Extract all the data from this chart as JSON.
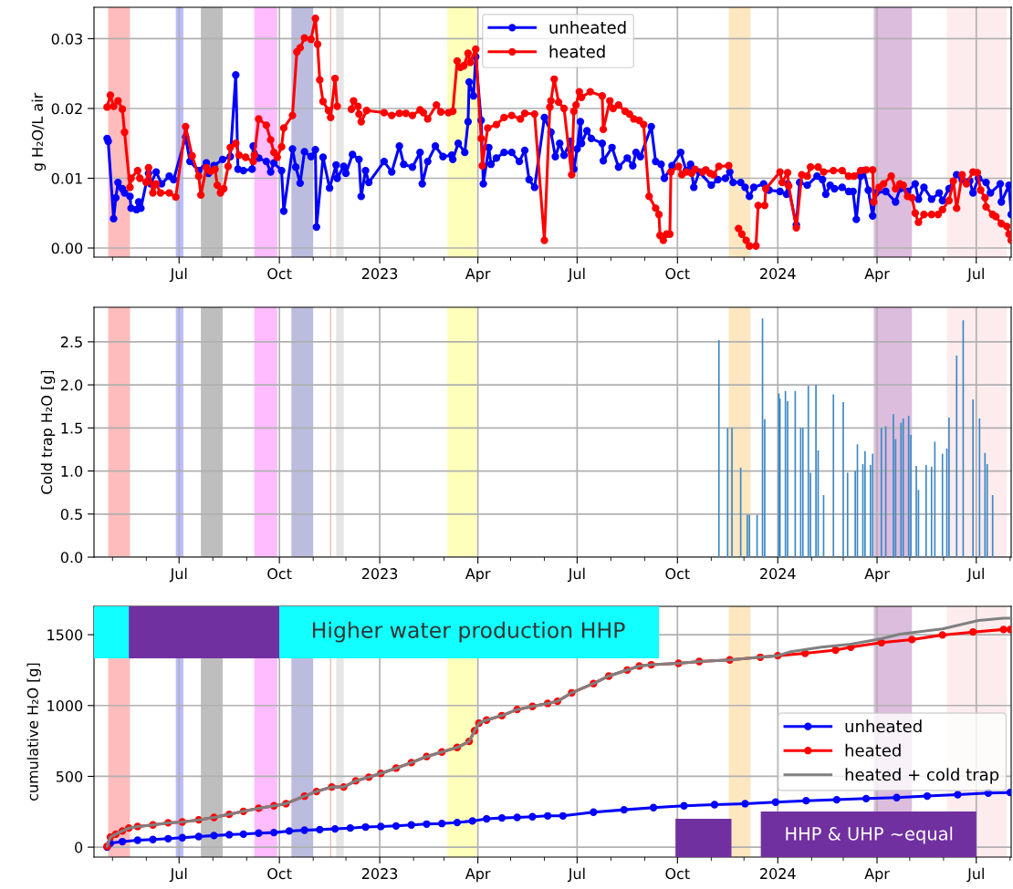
{
  "chart_data": [
    {
      "type": "line",
      "ylabel": "g H₂O/L air",
      "xlim": [
        "2022-04-14",
        "2024-08-02"
      ],
      "xticks": [
        {
          "value": "2022-07-01",
          "label": "Jul"
        },
        {
          "value": "2022-10-01",
          "label": "Oct"
        },
        {
          "value": "2023-01-01",
          "label": "2023"
        },
        {
          "value": "2023-04-01",
          "label": "Apr"
        },
        {
          "value": "2023-07-01",
          "label": "Jul"
        },
        {
          "value": "2023-10-01",
          "label": "Oct"
        },
        {
          "value": "2024-01-01",
          "label": "2024"
        },
        {
          "value": "2024-04-01",
          "label": "Apr"
        },
        {
          "value": "2024-07-01",
          "label": "Jul"
        }
      ],
      "ylim": [
        -0.0013,
        0.0345
      ],
      "yticks": [
        {
          "value": 0,
          "label": "0.00"
        },
        {
          "value": 0.01,
          "label": "0.01"
        },
        {
          "value": 0.02,
          "label": "0.02"
        },
        {
          "value": 0.03,
          "label": "0.03"
        }
      ],
      "grid": true,
      "legend": "top",
      "bands": [
        {
          "axis": "x",
          "from": "2022-04-27",
          "to": "2022-05-17",
          "color": "#ffbcbc"
        },
        {
          "axis": "x",
          "from": "2022-06-28",
          "to": "2022-07-05",
          "color": "#bcbcff"
        },
        {
          "axis": "x",
          "from": "2022-07-21",
          "to": "2022-08-10",
          "color": "#bebebe"
        },
        {
          "axis": "x",
          "from": "2022-09-08",
          "to": "2022-09-29",
          "color": "#ffbcff"
        },
        {
          "axis": "x",
          "from": "2022-10-12",
          "to": "2022-11-01",
          "color": "#bcbcde"
        },
        {
          "axis": "x",
          "from": "2022-11-22",
          "to": "2022-11-29",
          "color": "#e6e6e6"
        },
        {
          "axis": "x",
          "from": "2023-03-04",
          "to": "2023-03-31",
          "color": "#ffffbc"
        },
        {
          "axis": "x",
          "from": "2023-11-17",
          "to": "2023-12-07",
          "color": "#fde7c1"
        },
        {
          "axis": "x",
          "from": "2024-03-29",
          "to": "2024-05-03",
          "color": "#dcbddd"
        },
        {
          "axis": "x",
          "from": "2024-06-04",
          "to": "2024-07-29",
          "color": "#fdeced"
        }
      ],
      "ref_lines": [
        {
          "axis": "x",
          "value": "2022-11-17",
          "color": "#e8c0b4"
        }
      ],
      "series": [
        {
          "name": "unheated",
          "color": "#0000ff",
          "marker": "circle",
          "line_style": "solid",
          "x": [
            "2022-04-26",
            "2022-04-27",
            "2022-05-02",
            "2022-05-04",
            "2022-05-06",
            "2022-05-10",
            "2022-05-12",
            "2022-05-17",
            "2022-05-18",
            "2022-05-23",
            "2022-05-25",
            "2022-05-27",
            "2022-06-01",
            "2022-06-03",
            "2022-06-05",
            "2022-06-10",
            "2022-06-15",
            "2022-06-22",
            "2022-06-26",
            "2022-07-07",
            "2022-07-11",
            "2022-07-19",
            "2022-07-26",
            "2022-07-28",
            "2022-08-02",
            "2022-08-10",
            "2022-08-17",
            "2022-08-22",
            "2022-08-24",
            "2022-08-29",
            "2022-09-06",
            "2022-09-07",
            "2022-09-12",
            "2022-09-19",
            "2022-09-23",
            "2022-09-26",
            "2022-10-03",
            "2022-10-05",
            "2022-10-13",
            "2022-10-16",
            "2022-10-20",
            "2022-10-24",
            "2022-10-30",
            "2022-11-03",
            "2022-11-04",
            "2022-11-10",
            "2022-11-16",
            "2022-11-22",
            "2022-11-23",
            "2022-11-29",
            "2022-12-01",
            "2022-12-07",
            "2022-12-13",
            "2022-12-15",
            "2022-12-19",
            "2022-12-22",
            "2023-01-05",
            "2023-01-12",
            "2023-01-19",
            "2023-01-23",
            "2023-01-31",
            "2023-02-07",
            "2023-02-09",
            "2023-02-14",
            "2023-02-21",
            "2023-02-28",
            "2023-03-08",
            "2023-03-09",
            "2023-03-14",
            "2023-03-20",
            "2023-03-23",
            "2023-03-24",
            "2023-03-28",
            "2023-03-30",
            "2023-04-04",
            "2023-04-06",
            "2023-04-11",
            "2023-04-13",
            "2023-04-18",
            "2023-04-25",
            "2023-05-02",
            "2023-05-09",
            "2023-05-14",
            "2023-05-18",
            "2023-05-23",
            "2023-06-01",
            "2023-06-07",
            "2023-06-11",
            "2023-06-15",
            "2023-06-19",
            "2023-06-25",
            "2023-06-28",
            "2023-07-01",
            "2023-07-04",
            "2023-07-05",
            "2023-07-10",
            "2023-07-14",
            "2023-07-24",
            "2023-07-25",
            "2023-08-02",
            "2023-08-08",
            "2023-08-16",
            "2023-08-21",
            "2023-08-24",
            "2023-08-28",
            "2023-09-07",
            "2023-09-11",
            "2023-09-16",
            "2023-09-19",
            "2023-09-26",
            "2023-10-04",
            "2023-10-09",
            "2023-10-13",
            "2023-10-16",
            "2023-10-21",
            "2023-11-01",
            "2023-11-07",
            "2023-11-14",
            "2023-11-18",
            "2023-11-21",
            "2023-11-28",
            "2023-12-02",
            "2023-12-06",
            "2023-12-10",
            "2023-12-19",
            "2023-12-24",
            "2024-01-03",
            "2024-01-09",
            "2024-01-10",
            "2024-01-18",
            "2024-01-21",
            "2024-01-28",
            "2024-02-06",
            "2024-02-11",
            "2024-02-14",
            "2024-02-18",
            "2024-02-22",
            "2024-02-29",
            "2024-03-06",
            "2024-03-10",
            "2024-03-13",
            "2024-03-17",
            "2024-03-20",
            "2024-03-24",
            "2024-03-28",
            "2024-03-31",
            "2024-04-09",
            "2024-04-18",
            "2024-04-22",
            "2024-04-29",
            "2024-05-06",
            "2024-05-09",
            "2024-05-14",
            "2024-05-21",
            "2024-05-28",
            "2024-05-31",
            "2024-06-06",
            "2024-06-13",
            "2024-06-18",
            "2024-06-25",
            "2024-06-28",
            "2024-07-03",
            "2024-07-10",
            "2024-07-14",
            "2024-07-23",
            "2024-07-24",
            "2024-07-31",
            "2024-08-02"
          ],
          "values": [
            0.0157,
            0.0153,
            0.0042,
            0.0072,
            0.0094,
            0.0085,
            0.0079,
            0.0074,
            0.0057,
            0.0055,
            0.0066,
            0.0057,
            0.0094,
            0.0107,
            0.0092,
            0.0109,
            0.0092,
            0.0103,
            0.0098,
            0.0159,
            0.0124,
            0.0111,
            0.0122,
            0.0107,
            0.0118,
            0.0127,
            0.0131,
            0.0248,
            0.0113,
            0.0111,
            0.0113,
            0.0146,
            0.0129,
            0.0124,
            0.0109,
            0.0122,
            0.0111,
            0.0053,
            0.0142,
            0.0116,
            0.0093,
            0.0138,
            0.0131,
            0.0141,
            0.003,
            0.013,
            0.0086,
            0.0119,
            0.01,
            0.0117,
            0.0107,
            0.0134,
            0.0127,
            0.0074,
            0.0111,
            0.0094,
            0.0124,
            0.0109,
            0.0146,
            0.012,
            0.0116,
            0.0137,
            0.0092,
            0.0124,
            0.0146,
            0.0131,
            0.0133,
            0.0127,
            0.015,
            0.0137,
            0.0181,
            0.0238,
            0.0218,
            0.0274,
            0.0183,
            0.0092,
            0.0144,
            0.012,
            0.0129,
            0.0137,
            0.0137,
            0.0124,
            0.014,
            0.0098,
            0.0087,
            0.0187,
            0.0166,
            0.0131,
            0.015,
            0.0133,
            0.0153,
            0.0113,
            0.0142,
            0.0181,
            0.015,
            0.0168,
            0.0157,
            0.015,
            0.0125,
            0.0144,
            0.0116,
            0.0129,
            0.0118,
            0.0137,
            0.0131,
            0.0174,
            0.0124,
            0.012,
            0.01,
            0.0118,
            0.0137,
            0.0111,
            0.012,
            0.0087,
            0.0109,
            0.009,
            0.0098,
            0.01,
            0.0109,
            0.0094,
            0.0094,
            0.0087,
            0.0074,
            0.0087,
            0.0092,
            0.0083,
            0.0081,
            0.0077,
            0.0092,
            0.0033,
            0.0094,
            0.009,
            0.0103,
            0.0098,
            0.0077,
            0.009,
            0.0085,
            0.0087,
            0.0081,
            0.0081,
            0.0041,
            0.0103,
            0.0111,
            0.0083,
            0.0046,
            0.0079,
            0.0081,
            0.0066,
            0.0085,
            0.0081,
            0.0092,
            0.007,
            0.0087,
            0.007,
            0.0079,
            0.0068,
            0.0085,
            0.0105,
            0.0098,
            0.0096,
            0.0079,
            0.01,
            0.0094,
            0.0079,
            0.0092,
            0.0066,
            0.009,
            0.0048
          ]
        },
        {
          "name": "heated",
          "color": "#ff0000",
          "marker": "circle",
          "line_style": "solid",
          "x": [
            "2022-04-26",
            "2022-04-29",
            "2022-05-02",
            "2022-05-06",
            "2022-05-10",
            "2022-05-12",
            "2022-05-17",
            "2022-05-18",
            "2022-05-24",
            "2022-05-26",
            "2022-06-01",
            "2022-06-03",
            "2022-06-07",
            "2022-06-10",
            "2022-06-14",
            "2022-06-22",
            "2022-06-28",
            "2022-07-07",
            "2022-07-13",
            "2022-07-19",
            "2022-07-21",
            "2022-07-26",
            "2022-07-30",
            "2022-08-03",
            "2022-08-05",
            "2022-08-08",
            "2022-08-11",
            "2022-08-15",
            "2022-08-17",
            "2022-08-22",
            "2022-08-25",
            "2022-08-31",
            "2022-09-07",
            "2022-09-08",
            "2022-09-12",
            "2022-09-19",
            "2022-09-23",
            "2022-09-26",
            "2022-09-29",
            "2022-10-03",
            "2022-10-05",
            "2022-10-13",
            "2022-10-17",
            "2022-10-20",
            "2022-10-24",
            "2022-10-30",
            "2022-11-03",
            "2022-11-05",
            "2022-11-07",
            "2022-11-10",
            "2022-11-15",
            "2022-11-17",
            "2022-11-21",
            "2022-11-23",
            "2022-11-30",
            "2022-12-06",
            "2022-12-08",
            "2022-12-12",
            "2022-12-13",
            "2022-12-15",
            "2022-12-20",
            "2023-01-05",
            "2023-01-12",
            "2023-01-19",
            "2023-01-25",
            "2023-01-31",
            "2023-02-07",
            "2023-02-10",
            "2023-02-14",
            "2023-02-22",
            "2023-02-26",
            "2023-03-05",
            "2023-03-09",
            "2023-03-13",
            "2023-03-16",
            "2023-03-19",
            "2023-03-23",
            "2023-03-25",
            "2023-03-30",
            "2023-04-04",
            "2023-04-05",
            "2023-04-10",
            "2023-04-18",
            "2023-04-25",
            "2023-05-02",
            "2023-05-10",
            "2023-05-14",
            "2023-05-23",
            "2023-06-01",
            "2023-06-06",
            "2023-06-07",
            "2023-06-10",
            "2023-06-14",
            "2023-06-19",
            "2023-06-26",
            "2023-06-28",
            "2023-06-30",
            "2023-07-03",
            "2023-07-05",
            "2023-07-13",
            "2023-07-24",
            "2023-07-25",
            "2023-07-31",
            "2023-08-03",
            "2023-08-08",
            "2023-08-14",
            "2023-08-18",
            "2023-08-22",
            "2023-08-27",
            "2023-08-31",
            "2023-09-05",
            "2023-09-11",
            "2023-09-14",
            "2023-09-15",
            "2023-09-18",
            "2023-09-21",
            "2023-09-24",
            "2023-09-25",
            "2023-10-02",
            "2023-10-05",
            "2023-10-09",
            "2023-10-14",
            "2023-10-17",
            "2023-10-24",
            "2023-10-27",
            "2023-10-31",
            "2023-11-03",
            "2023-11-08",
            "2023-11-17",
            "2023-11-22",
            "2023-11-26",
            "2023-11-29",
            "2023-12-03",
            "2023-12-06",
            "2023-12-12",
            "2023-12-14",
            "2023-12-20",
            "2023-12-21",
            "2024-01-03",
            "2024-01-05",
            "2024-01-10",
            "2024-01-11",
            "2024-01-18",
            "2024-01-23",
            "2024-01-28",
            "2024-01-31",
            "2024-02-07",
            "2024-02-12",
            "2024-02-21",
            "2024-02-29",
            "2024-03-06",
            "2024-03-11",
            "2024-03-17",
            "2024-03-22",
            "2024-03-28",
            "2024-03-29",
            "2024-04-03",
            "2024-04-07",
            "2024-04-14",
            "2024-04-18",
            "2024-04-22",
            "2024-04-25",
            "2024-04-29",
            "2024-05-03",
            "2024-05-06",
            "2024-05-09",
            "2024-05-14",
            "2024-05-21",
            "2024-05-27",
            "2024-05-31",
            "2024-06-06",
            "2024-06-10",
            "2024-06-13",
            "2024-06-18",
            "2024-06-22",
            "2024-06-28",
            "2024-07-02",
            "2024-07-05",
            "2024-07-09",
            "2024-07-10",
            "2024-07-16",
            "2024-07-19",
            "2024-07-24",
            "2024-07-29",
            "2024-07-31",
            "2024-08-02"
          ],
          "values": [
            0.0202,
            0.0219,
            0.0203,
            0.0211,
            0.0199,
            0.0166,
            0.0087,
            0.01,
            0.0111,
            0.01,
            0.0094,
            0.0115,
            0.0079,
            0.0092,
            0.0079,
            0.0079,
            0.0073,
            0.0174,
            0.0132,
            0.0103,
            0.0076,
            0.0115,
            0.011,
            0.0113,
            0.009,
            0.0079,
            0.0085,
            0.0117,
            0.0144,
            0.015,
            0.0133,
            0.013,
            0.0124,
            0.0133,
            0.0185,
            0.0176,
            0.0155,
            0.0137,
            0.013,
            0.0145,
            0.0172,
            0.019,
            0.0281,
            0.0287,
            0.0301,
            0.0299,
            0.0329,
            0.0292,
            0.0241,
            0.021,
            0.0197,
            0.0187,
            0.0243,
            0.0203,
            null,
            0.0199,
            0.0211,
            0.0203,
            0.0192,
            0.0181,
            0.0197,
            0.0194,
            0.019,
            0.0193,
            0.0193,
            0.019,
            0.0198,
            0.0194,
            0.0185,
            0.0205,
            0.0195,
            0.0194,
            0.0196,
            0.0268,
            0.0259,
            0.0261,
            0.0279,
            0.0266,
            0.0285,
            0.0157,
            0.0118,
            0.0172,
            0.0177,
            0.0187,
            0.019,
            0.0185,
            0.0193,
            0.0192,
            0.0011,
            0.0202,
            0.0211,
            0.0242,
            0.0209,
            0.02,
            0.0105,
            0.0196,
            0.0205,
            0.0224,
            0.0216,
            0.0224,
            0.0218,
            0.017,
            0.0211,
            0.02,
            0.0205,
            0.0196,
            0.0192,
            0.0185,
            0.0183,
            0.0177,
            0.0074,
            0.0057,
            0.0048,
            0.0018,
            0.0011,
            0.002,
            0.002,
            0.0109,
            0.0117,
            0.0105,
            0.0109,
            0.0107,
            0.0113,
            0.0109,
            0.0112,
            0.0107,
            0.0105,
            0.0117,
            0.0118,
            null,
            0.0028,
            0.002,
            0.0011,
            0.0003,
            0.0003,
            0.0061,
            0.0061,
            0.0085,
            0.0109,
            0.0094,
            0.0108,
            0.0089,
            0.0029,
            0.0105,
            0.0103,
            0.0116,
            0.0116,
            0.0109,
            0.0111,
            0.0111,
            0.0103,
            0.0103,
            0.0111,
            0.0112,
            0.0112,
            0.0066,
            0.0087,
            0.0092,
            0.0103,
            0.0085,
            0.0092,
            0.009,
            0.0074,
            0.0072,
            0.005,
            0.0037,
            0.0048,
            0.0048,
            0.0048,
            0.0055,
            0.0068,
            0.0096,
            0.0057,
            0.0105,
            0.0092,
            0.0109,
            0.0108,
            0.0083,
            0.0072,
            0.0059,
            0.0048,
            0.0045,
            0.0035,
            0.0031,
            0.002,
            0.0011
          ]
        }
      ]
    },
    {
      "type": "bar",
      "ylabel": "Cold trap H₂O [g]",
      "xlim": [
        "2022-04-14",
        "2024-08-02"
      ],
      "xticks": [
        {
          "value": "2022-07-01",
          "label": "Jul"
        },
        {
          "value": "2022-10-01",
          "label": "Oct"
        },
        {
          "value": "2023-01-01",
          "label": "2023"
        },
        {
          "value": "2023-04-01",
          "label": "Apr"
        },
        {
          "value": "2023-07-01",
          "label": "Jul"
        },
        {
          "value": "2023-10-01",
          "label": "Oct"
        },
        {
          "value": "2024-01-01",
          "label": "2024"
        },
        {
          "value": "2024-04-01",
          "label": "Apr"
        },
        {
          "value": "2024-07-01",
          "label": "Jul"
        }
      ],
      "ylim": [
        0,
        2.9
      ],
      "yticks": [
        {
          "value": 0,
          "label": "0.0"
        },
        {
          "value": 0.5,
          "label": "0.5"
        },
        {
          "value": 1.0,
          "label": "1.0"
        },
        {
          "value": 1.5,
          "label": "1.5"
        },
        {
          "value": 2.0,
          "label": "2.0"
        },
        {
          "value": 2.5,
          "label": "2.5"
        }
      ],
      "grid": true,
      "bands": [
        {
          "axis": "x",
          "from": "2022-04-27",
          "to": "2022-05-17",
          "color": "#ffbcbc"
        },
        {
          "axis": "x",
          "from": "2022-06-28",
          "to": "2022-07-05",
          "color": "#bcbcff"
        },
        {
          "axis": "x",
          "from": "2022-07-21",
          "to": "2022-08-10",
          "color": "#bebebe"
        },
        {
          "axis": "x",
          "from": "2022-09-08",
          "to": "2022-09-29",
          "color": "#ffbcff"
        },
        {
          "axis": "x",
          "from": "2022-10-12",
          "to": "2022-11-01",
          "color": "#bcbcde"
        },
        {
          "axis": "x",
          "from": "2022-11-22",
          "to": "2022-11-29",
          "color": "#e6e6e6"
        },
        {
          "axis": "x",
          "from": "2023-03-04",
          "to": "2023-03-31",
          "color": "#ffffbc"
        },
        {
          "axis": "x",
          "from": "2023-11-17",
          "to": "2023-12-07",
          "color": "#fde7c1"
        },
        {
          "axis": "x",
          "from": "2024-03-29",
          "to": "2024-05-03",
          "color": "#dcbddd"
        },
        {
          "axis": "x",
          "from": "2024-06-04",
          "to": "2024-07-29",
          "color": "#fdeced"
        }
      ],
      "ref_lines": [
        {
          "axis": "x",
          "value": "2022-11-17",
          "color": "#e8c0b4"
        }
      ],
      "series": [
        {
          "color": "#3d88c4",
          "x": [
            "2023-11-08",
            "2023-11-16",
            "2023-11-20",
            "2023-11-28",
            "2023-12-04",
            "2023-12-06",
            "2023-12-13",
            "2023-12-18",
            "2023-12-20",
            "2024-01-02",
            "2024-01-03",
            "2024-01-08",
            "2024-01-10",
            "2024-01-17",
            "2024-01-22",
            "2024-01-24",
            "2024-01-29",
            "2024-01-31",
            "2024-02-05",
            "2024-02-07",
            "2024-02-12",
            "2024-02-21",
            "2024-03-01",
            "2024-03-05",
            "2024-03-12",
            "2024-03-14",
            "2024-03-19",
            "2024-03-21",
            "2024-03-26",
            "2024-03-28",
            "2024-04-05",
            "2024-04-09",
            "2024-04-16",
            "2024-04-18",
            "2024-04-23",
            "2024-04-25",
            "2024-04-30",
            "2024-05-02",
            "2024-05-07",
            "2024-05-09",
            "2024-05-16",
            "2024-05-21",
            "2024-05-24",
            "2024-05-31",
            "2024-06-04",
            "2024-06-06",
            "2024-06-13",
            "2024-06-19",
            "2024-06-28",
            "2024-07-04",
            "2024-07-09",
            "2024-07-11",
            "2024-07-16"
          ],
          "values": [
            2.52,
            1.5,
            1.5,
            1.04,
            0.49,
            0.49,
            0.49,
            2.77,
            1.6,
            1.9,
            1.84,
            1.93,
            1.81,
            1.93,
            1.5,
            1.5,
            1.99,
            0.98,
            2.0,
            1.24,
            0.72,
            1.89,
            1.8,
            0.98,
            1.0,
            1.31,
            1.08,
            1.23,
            1.07,
            1.2,
            1.5,
            1.52,
            1.66,
            1.37,
            1.56,
            1.61,
            1.64,
            1.42,
            1.06,
            0.78,
            1.07,
            1.05,
            1.34,
            1.2,
            1.26,
            1.62,
            2.34,
            2.75,
            1.83,
            1.61,
            1.21,
            1.08,
            0.72
          ]
        }
      ]
    },
    {
      "type": "line",
      "ylabel": "cumulative H₂O [g]",
      "xlim": [
        "2022-04-14",
        "2024-08-02"
      ],
      "xticks": [
        {
          "value": "2022-07-01",
          "label": "Jul"
        },
        {
          "value": "2022-10-01",
          "label": "Oct"
        },
        {
          "value": "2023-01-01",
          "label": "2023"
        },
        {
          "value": "2023-04-01",
          "label": "Apr"
        },
        {
          "value": "2023-07-01",
          "label": "Jul"
        },
        {
          "value": "2023-10-01",
          "label": "Oct"
        },
        {
          "value": "2024-01-01",
          "label": "2024"
        },
        {
          "value": "2024-04-01",
          "label": "Apr"
        },
        {
          "value": "2024-07-01",
          "label": "Jul"
        }
      ],
      "ylim": [
        -70,
        1700
      ],
      "yticks": [
        0,
        500,
        1000,
        1500
      ],
      "grid": true,
      "legend": "right",
      "annotations": [
        "Higher water production HHP",
        "HHP & UHP ~equal"
      ],
      "bands": [
        {
          "axis": "x",
          "from": "2022-04-27",
          "to": "2022-05-17",
          "color": "#ffbcbc"
        },
        {
          "axis": "x",
          "from": "2022-06-28",
          "to": "2022-07-05",
          "color": "#bcbcff"
        },
        {
          "axis": "x",
          "from": "2022-07-21",
          "to": "2022-08-10",
          "color": "#bebebe"
        },
        {
          "axis": "x",
          "from": "2022-09-08",
          "to": "2022-09-29",
          "color": "#ffbcff"
        },
        {
          "axis": "x",
          "from": "2022-10-12",
          "to": "2022-11-01",
          "color": "#bcbcde"
        },
        {
          "axis": "x",
          "from": "2022-11-22",
          "to": "2022-11-29",
          "color": "#e6e6e6"
        },
        {
          "axis": "x",
          "from": "2023-03-04",
          "to": "2023-03-31",
          "color": "#ffffbc"
        },
        {
          "axis": "x",
          "from": "2023-11-17",
          "to": "2023-12-07",
          "color": "#fde7c1"
        },
        {
          "axis": "x",
          "from": "2024-03-29",
          "to": "2024-05-03",
          "color": "#dcbddd"
        },
        {
          "axis": "x",
          "from": "2024-06-04",
          "to": "2024-07-29",
          "color": "#fdeced"
        }
      ],
      "ref_lines": [
        {
          "axis": "x",
          "value": "2022-11-17",
          "color": "#e8c0b4"
        }
      ],
      "series": [
        {
          "name": "unheated",
          "color": "#0000ff",
          "marker": "circle",
          "line_style": "solid",
          "x": [
            "2022-04-26",
            "2022-04-29",
            "2022-05-10",
            "2022-05-24",
            "2022-06-07",
            "2022-06-21",
            "2022-07-04",
            "2022-07-19",
            "2022-08-02",
            "2022-08-16",
            "2022-08-29",
            "2022-09-12",
            "2022-09-26",
            "2022-10-10",
            "2022-10-24",
            "2022-11-07",
            "2022-11-21",
            "2022-12-05",
            "2022-12-19",
            "2023-01-02",
            "2023-01-16",
            "2023-01-30",
            "2023-02-13",
            "2023-02-27",
            "2023-03-13",
            "2023-03-27",
            "2023-04-09",
            "2023-04-23",
            "2023-05-07",
            "2023-05-21",
            "2023-06-04",
            "2023-06-18",
            "2023-07-16",
            "2023-08-13",
            "2023-09-09",
            "2023-10-07",
            "2023-11-04",
            "2023-12-02",
            "2023-12-30",
            "2024-01-27",
            "2024-02-24",
            "2024-03-22",
            "2024-04-19",
            "2024-05-17",
            "2024-06-14",
            "2024-07-12",
            "2024-08-01"
          ],
          "values": [
            0,
            28,
            39,
            49,
            54,
            60,
            67,
            75,
            82,
            88,
            92,
            99,
            103,
            114,
            120,
            124,
            129,
            135,
            142,
            146,
            150,
            157,
            163,
            167,
            174,
            185,
            200,
            206,
            210,
            215,
            221,
            221,
            247,
            264,
            279,
            292,
            300,
            307,
            318,
            328,
            335,
            343,
            350,
            361,
            371,
            382,
            386
          ]
        },
        {
          "name": "heated",
          "color": "#ff0000",
          "marker": "circle",
          "line_style": "solid",
          "x": [
            "2022-04-26",
            "2022-04-29",
            "2022-05-04",
            "2022-05-10",
            "2022-05-16",
            "2022-05-24",
            "2022-06-07",
            "2022-06-21",
            "2022-07-04",
            "2022-07-19",
            "2022-08-02",
            "2022-08-16",
            "2022-08-29",
            "2022-09-12",
            "2022-09-26",
            "2022-10-07",
            "2022-10-24",
            "2022-11-04",
            "2022-11-18",
            "2022-11-29",
            "2022-12-10",
            "2022-12-22",
            "2023-01-02",
            "2023-01-16",
            "2023-01-30",
            "2023-02-13",
            "2023-02-27",
            "2023-03-13",
            "2023-03-24",
            "2023-03-29",
            "2023-04-02",
            "2023-04-09",
            "2023-04-23",
            "2023-05-07",
            "2023-05-21",
            "2023-06-04",
            "2023-06-13",
            "2023-06-26",
            "2023-07-16",
            "2023-07-30",
            "2023-08-16",
            "2023-08-27",
            "2023-09-07",
            "2023-10-02",
            "2023-10-21",
            "2023-11-18",
            "2023-12-16",
            "2024-01-01",
            "2024-01-26",
            "2024-02-23",
            "2024-03-08",
            "2024-04-05",
            "2024-05-03",
            "2024-05-31",
            "2024-06-28",
            "2024-07-26",
            "2024-08-01"
          ],
          "values": [
            6,
            71,
            92,
            114,
            135,
            146,
            157,
            172,
            178,
            193,
            210,
            232,
            253,
            275,
            292,
            307,
            360,
            393,
            425,
            425,
            468,
            494,
            521,
            558,
            597,
            640,
            672,
            704,
            747,
            822,
            876,
            897,
            929,
            972,
            994,
            1015,
            1030,
            1090,
            1155,
            1208,
            1251,
            1279,
            1288,
            1298,
            1311,
            1322,
            1341,
            1352,
            1369,
            1391,
            1412,
            1444,
            1466,
            1498,
            1519,
            1537,
            1537
          ]
        },
        {
          "name": "heated + cold trap",
          "color": "#808080",
          "marker": "none",
          "line_style": "solid",
          "x": [
            "2022-04-26",
            "2022-04-29",
            "2022-05-04",
            "2022-05-10",
            "2022-05-16",
            "2022-05-24",
            "2022-06-07",
            "2022-06-21",
            "2022-07-04",
            "2022-07-19",
            "2022-08-02",
            "2022-08-16",
            "2022-08-29",
            "2022-09-12",
            "2022-09-26",
            "2022-10-07",
            "2022-10-24",
            "2022-11-04",
            "2022-11-18",
            "2022-11-29",
            "2022-12-10",
            "2022-12-22",
            "2023-01-02",
            "2023-01-16",
            "2023-01-30",
            "2023-02-13",
            "2023-02-27",
            "2023-03-13",
            "2023-03-24",
            "2023-03-29",
            "2023-04-02",
            "2023-04-09",
            "2023-04-23",
            "2023-05-07",
            "2023-05-21",
            "2023-06-04",
            "2023-06-13",
            "2023-06-26",
            "2023-07-16",
            "2023-07-30",
            "2023-08-16",
            "2023-08-27",
            "2023-09-07",
            "2023-10-02",
            "2023-10-21",
            "2023-11-18",
            "2023-12-16",
            "2024-01-01",
            "2024-01-13",
            "2024-02-10",
            "2024-03-08",
            "2024-04-05",
            "2024-04-22",
            "2024-05-31",
            "2024-07-03",
            "2024-07-26",
            "2024-08-01"
          ],
          "values": [
            6,
            71,
            92,
            114,
            135,
            146,
            157,
            172,
            178,
            193,
            210,
            232,
            253,
            275,
            292,
            307,
            360,
            393,
            425,
            425,
            468,
            494,
            521,
            558,
            597,
            640,
            672,
            704,
            747,
            822,
            876,
            897,
            929,
            972,
            994,
            1015,
            1030,
            1090,
            1155,
            1208,
            1251,
            1279,
            1288,
            1298,
            1311,
            1322,
            1341,
            1352,
            1380,
            1412,
            1433,
            1472,
            1504,
            1541,
            1601,
            1616,
            1616
          ]
        }
      ]
    }
  ]
}
